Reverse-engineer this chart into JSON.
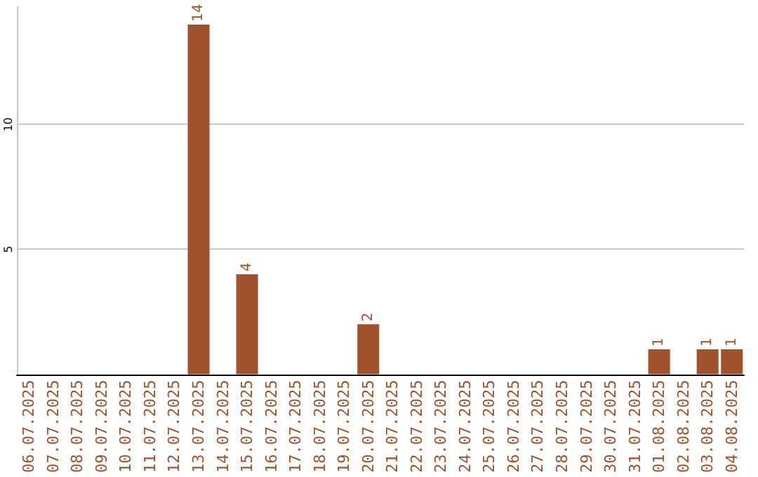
{
  "chart_data": {
    "type": "bar",
    "categories": [
      "06.07.2025",
      "07.07.2025",
      "08.07.2025",
      "09.07.2025",
      "10.07.2025",
      "11.07.2025",
      "12.07.2025",
      "13.07.2025",
      "14.07.2025",
      "15.07.2025",
      "16.07.2025",
      "17.07.2025",
      "18.07.2025",
      "19.07.2025",
      "20.07.2025",
      "21.07.2025",
      "22.07.2025",
      "23.07.2025",
      "24.07.2025",
      "25.07.2025",
      "26.07.2025",
      "27.07.2025",
      "28.07.2025",
      "29.07.2025",
      "30.07.2025",
      "31.07.2025",
      "01.08.2025",
      "02.08.2025",
      "03.08.2025",
      "04.08.2025"
    ],
    "values": [
      0,
      0,
      0,
      0,
      0,
      0,
      0,
      14,
      0,
      4,
      0,
      0,
      0,
      0,
      2,
      0,
      0,
      0,
      0,
      0,
      0,
      0,
      0,
      0,
      0,
      0,
      1,
      0,
      1,
      1
    ],
    "value_labels": [
      null,
      null,
      null,
      null,
      null,
      null,
      null,
      "14",
      null,
      "4",
      null,
      null,
      null,
      null,
      "2",
      null,
      null,
      null,
      null,
      null,
      null,
      null,
      null,
      null,
      null,
      null,
      "1",
      null,
      "1",
      "1"
    ],
    "color": "#a0522d",
    "ylim": [
      0,
      14.7
    ],
    "yticks": [
      5,
      10
    ],
    "grid": "y",
    "legend": false
  }
}
